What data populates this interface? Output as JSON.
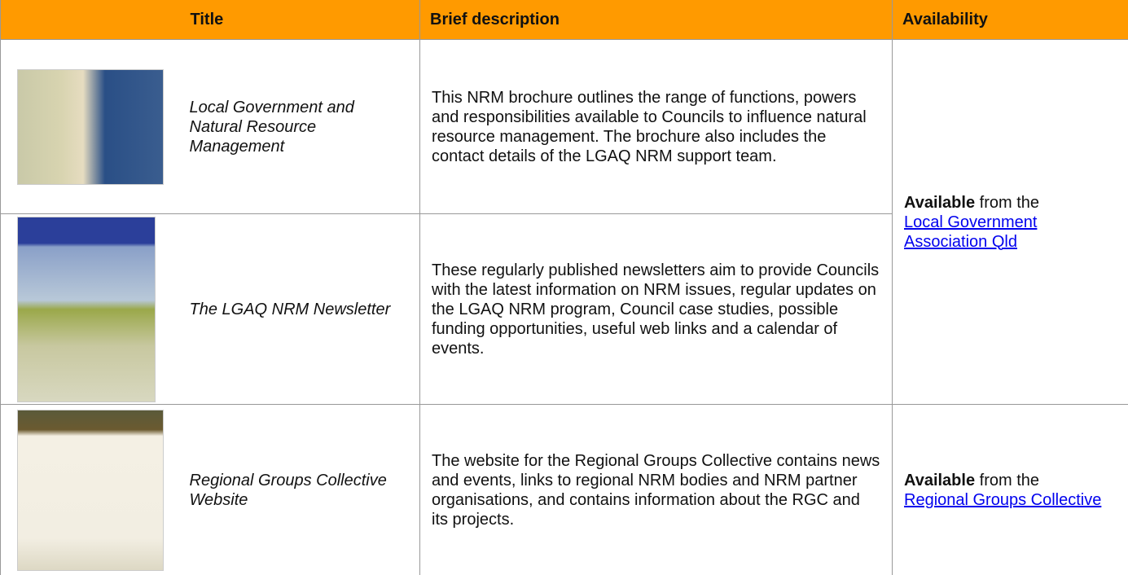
{
  "table": {
    "header": [
      "Title",
      "Brief description",
      "Availability"
    ],
    "rows": [
      {
        "title": "Local Government and Natural Resource Management",
        "description": "This NRM brochure outlines the range of functions, powers and responsibilities available to Councils to influence natural resource management. The brochure also includes the contact details of the LGAQ NRM support team.",
        "availability": {
          "bold": "Available",
          "text": "from the",
          "link": "Local Government Association Qld"
        }
      },
      {
        "title": "The LGAQ NRM Newsletter",
        "description": "These regularly published newsletters aim to provide Councils with the latest information on NRM issues, regular updates on the LGAQ NRM program, Council case studies, possible funding opportunities, useful web links and a calendar of events."
      },
      {
        "title": "Regional Groups Collective Website",
        "description": "The website for the Regional Groups Collective contains news and events, links to regional NRM bodies and NRM partner organisations, and contains information about the RGC and its projects.",
        "availability": {
          "bold": "Available",
          "text": "from the",
          "link": "Regional Groups Collective"
        }
      }
    ]
  }
}
